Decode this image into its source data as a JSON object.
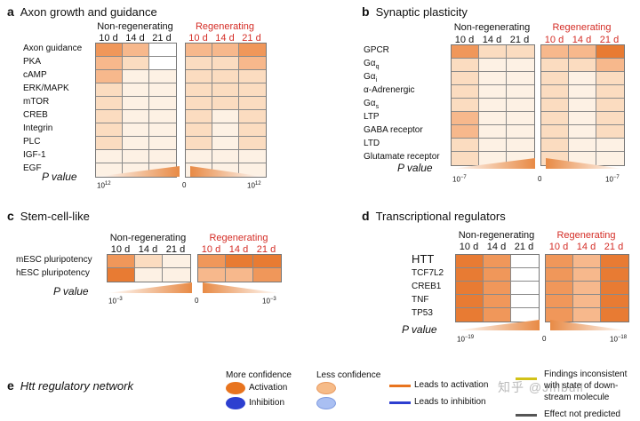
{
  "palette": [
    "#ffffff",
    "#fdf1e4",
    "#fbdcc0",
    "#f7b88c",
    "#f0975a",
    "#e87b33"
  ],
  "gradient_color": "#e88a45",
  "panels": {
    "a": {
      "letter": "a",
      "title": "Axon growth and guidance",
      "nonreg_label": "Non-regenerating",
      "reg_label": "Regenerating",
      "timepoints": [
        "10 d",
        "14 d",
        "21 d"
      ],
      "rows": [
        "Axon guidance",
        "PKA",
        "cAMP",
        "ERK/MAPK",
        "mTOR",
        "CREB",
        "Integrin",
        "PLC",
        "IGF-1",
        "EGF"
      ],
      "nonreg_levels": [
        [
          4,
          3,
          0
        ],
        [
          3,
          2,
          0
        ],
        [
          3,
          1,
          1
        ],
        [
          2,
          1,
          1
        ],
        [
          2,
          1,
          1
        ],
        [
          2,
          1,
          1
        ],
        [
          2,
          1,
          1
        ],
        [
          2,
          1,
          1
        ],
        [
          1,
          1,
          1
        ],
        [
          1,
          1,
          1
        ]
      ],
      "reg_levels": [
        [
          3,
          3,
          4
        ],
        [
          2,
          2,
          3
        ],
        [
          2,
          2,
          2
        ],
        [
          2,
          2,
          2
        ],
        [
          2,
          2,
          2
        ],
        [
          2,
          1,
          2
        ],
        [
          2,
          1,
          2
        ],
        [
          2,
          1,
          2
        ],
        [
          1,
          1,
          1
        ],
        [
          1,
          1,
          1
        ]
      ],
      "pvalue_label": "P value",
      "tick_left": "10",
      "tick_left_exp": "12",
      "tick_zero": "0",
      "tick_right": "10",
      "tick_right_exp": "12"
    },
    "b": {
      "letter": "b",
      "title": "Synaptic plasticity",
      "nonreg_label": "Non-regenerating",
      "reg_label": "Regenerating",
      "timepoints": [
        "10 d",
        "14 d",
        "21 d"
      ],
      "rows": [
        "GPCR",
        "Gα",
        "Gα",
        "α-Adrenergic",
        "Gα",
        "LTP",
        "GABA receptor",
        "LTD",
        "Glutamate receptor"
      ],
      "row_subscripts": [
        "",
        "q",
        "i",
        "",
        "s",
        "",
        "",
        "",
        ""
      ],
      "nonreg_levels": [
        [
          4,
          2,
          2
        ],
        [
          2,
          1,
          1
        ],
        [
          2,
          1,
          1
        ],
        [
          2,
          1,
          1
        ],
        [
          2,
          1,
          1
        ],
        [
          3,
          1,
          1
        ],
        [
          3,
          1,
          1
        ],
        [
          2,
          1,
          1
        ],
        [
          2,
          1,
          1
        ]
      ],
      "reg_levels": [
        [
          3,
          3,
          5
        ],
        [
          2,
          2,
          3
        ],
        [
          2,
          1,
          2
        ],
        [
          2,
          1,
          2
        ],
        [
          2,
          1,
          2
        ],
        [
          2,
          1,
          2
        ],
        [
          2,
          1,
          2
        ],
        [
          2,
          1,
          1
        ],
        [
          2,
          1,
          1
        ]
      ],
      "pvalue_label": "P value",
      "tick_left": "10",
      "tick_left_exp": "−7",
      "tick_zero": "0",
      "tick_right": "10",
      "tick_right_exp": "−7"
    },
    "c": {
      "letter": "c",
      "title": "Stem-cell-like",
      "nonreg_label": "Non-regenerating",
      "reg_label": "Regenerating",
      "timepoints": [
        "10 d",
        "14 d",
        "21 d"
      ],
      "rows": [
        "mESC pluripotency",
        "hESC pluripotency"
      ],
      "nonreg_levels": [
        [
          4,
          2,
          1
        ],
        [
          5,
          1,
          1
        ]
      ],
      "reg_levels": [
        [
          4,
          5,
          5
        ],
        [
          3,
          3,
          4
        ]
      ],
      "pvalue_label": "P value",
      "tick_left": "10",
      "tick_left_exp": "−3",
      "tick_zero": "0",
      "tick_right": "10",
      "tick_right_exp": "−3"
    },
    "d": {
      "letter": "d",
      "title": "Transcriptional regulators",
      "nonreg_label": "Non-regenerating",
      "reg_label": "Regenerating",
      "timepoints": [
        "10 d",
        "14 d",
        "21 d"
      ],
      "rows": [
        "HTT",
        "TCF7L2",
        "CREB1",
        "TNF",
        "TP53"
      ],
      "nonreg_levels": [
        [
          5,
          4,
          0
        ],
        [
          5,
          4,
          0
        ],
        [
          5,
          4,
          0
        ],
        [
          5,
          4,
          0
        ],
        [
          5,
          4,
          0
        ]
      ],
      "reg_levels": [
        [
          4,
          3,
          5
        ],
        [
          4,
          3,
          5
        ],
        [
          4,
          3,
          5
        ],
        [
          4,
          3,
          5
        ],
        [
          4,
          3,
          5
        ]
      ],
      "pvalue_label": "P value",
      "tick_left": "10",
      "tick_left_exp": "−19",
      "tick_zero": "0",
      "tick_right": "10",
      "tick_right_exp": "−18"
    }
  },
  "panel_e": {
    "letter": "e",
    "title": "Htt regulatory network",
    "more_confidence": "More confidence",
    "less_confidence": "Less confidence",
    "activation": "Activation",
    "inhibition": "Inhibition",
    "leads_to_activation": "Leads to activation",
    "leads_to_inhibition": "Leads to inhibition",
    "findings_inconsistent": "Findings inconsistent with state of down- stream molecule",
    "effect_not_predicted": "Effect not predicted",
    "colors": {
      "activation": "#e8741f",
      "inhibition": "#2d3fd0",
      "activation_light": "#f6bb88",
      "inhibition_light": "#a9bff2",
      "inconsistent": "#d2c218",
      "not_predicted": "#555555"
    }
  },
  "watermark": "知乎 @Jinbull"
}
